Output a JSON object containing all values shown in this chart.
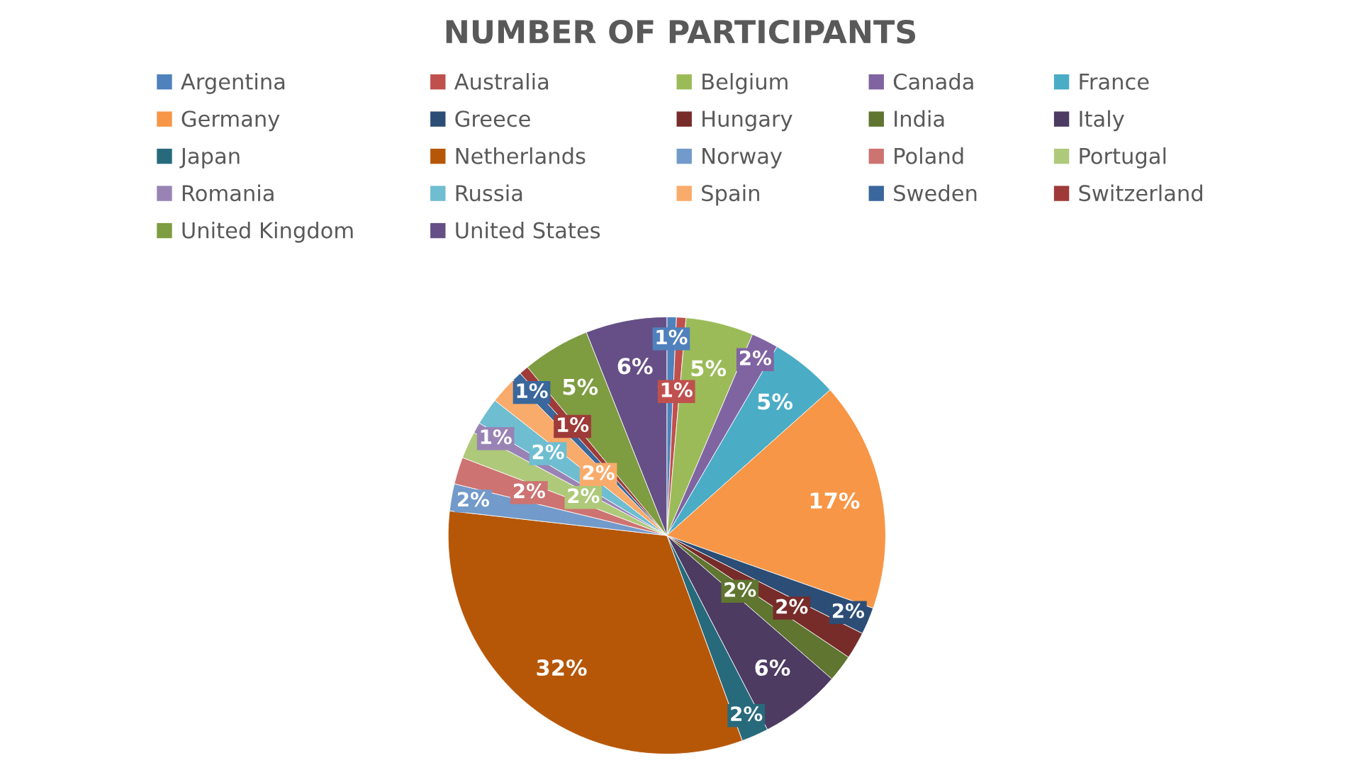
{
  "chart_data": {
    "type": "pie",
    "title": "NUMBER OF PARTICIPANTS",
    "categories": [
      "Argentina",
      "Australia",
      "Belgium",
      "Canada",
      "France",
      "Germany",
      "Greece",
      "Hungary",
      "India",
      "Italy",
      "Japan",
      "Netherlands",
      "Norway",
      "Poland",
      "Portugal",
      "Romania",
      "Russia",
      "Spain",
      "Sweden",
      "Switzerland",
      "United Kingdom",
      "United States"
    ],
    "values": [
      0.7,
      0.7,
      5,
      2,
      5,
      17,
      2,
      2,
      2,
      6,
      2,
      32.4,
      2,
      2,
      2,
      0.8,
      2,
      2,
      0.7,
      0.7,
      5,
      6
    ],
    "value_labels": [
      "1%",
      "1%",
      "5%",
      "2%",
      "5%",
      "17%",
      "2%",
      "2%",
      "2%",
      "6%",
      "2%",
      "32%",
      "2%",
      "2%",
      "2%",
      "1%",
      "2%",
      "2%",
      "1%",
      "1%",
      "5%",
      "6%"
    ],
    "colors": [
      "#4f81bd",
      "#c0504d",
      "#9bbb59",
      "#8064a2",
      "#4bacc6",
      "#f79646",
      "#2c4d75",
      "#772c2a",
      "#5f7530",
      "#4d3b62",
      "#276a7c",
      "#b65708",
      "#729aca",
      "#cd7371",
      "#afc97a",
      "#9983b5",
      "#6fbdd1",
      "#f9ab6b",
      "#3a679c",
      "#9e3b38",
      "#7e9c40",
      "#664f86"
    ],
    "legend": "top"
  }
}
